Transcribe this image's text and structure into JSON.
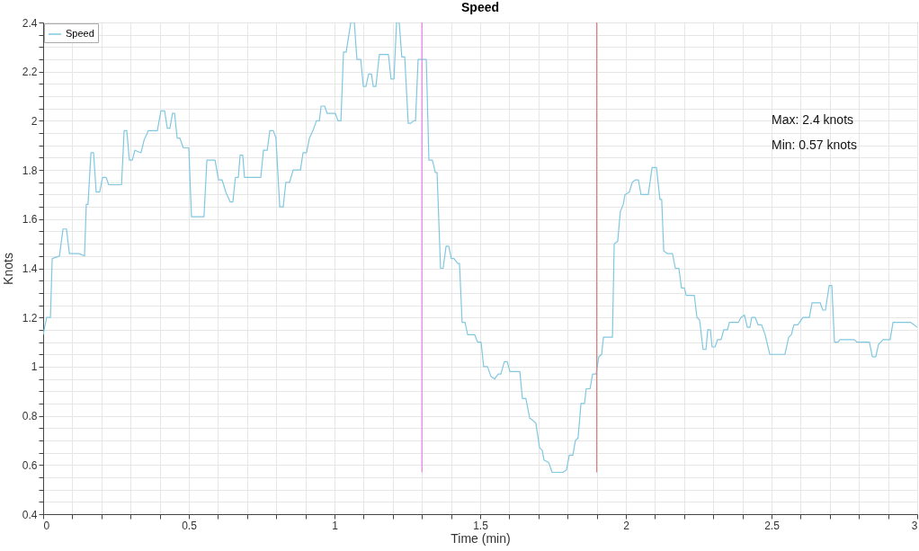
{
  "chart_data": {
    "type": "line",
    "title": "Speed",
    "xlabel": "Time (min)",
    "ylabel": "Knots",
    "xlim": [
      0,
      3
    ],
    "ylim": [
      0.4,
      2.4
    ],
    "xticks": [
      0,
      {
        "value": 0.1,
        "label": null
      },
      {
        "value": 0.2,
        "label": null
      },
      {
        "value": 0.3,
        "label": null
      },
      {
        "value": 0.4,
        "label": null
      },
      0.5,
      {
        "value": 0.6,
        "label": null
      },
      {
        "value": 0.7,
        "label": null
      },
      {
        "value": 0.8,
        "label": null
      },
      {
        "value": 0.9,
        "label": null
      },
      1,
      {
        "value": 1.1,
        "label": null
      },
      {
        "value": 1.2,
        "label": null
      },
      {
        "value": 1.3,
        "label": null
      },
      {
        "value": 1.4,
        "label": null
      },
      1.5,
      {
        "value": 1.6,
        "label": null
      },
      {
        "value": 1.7,
        "label": null
      },
      {
        "value": 1.8,
        "label": null
      },
      {
        "value": 1.9,
        "label": null
      },
      2,
      {
        "value": 2.1,
        "label": null
      },
      {
        "value": 2.2,
        "label": null
      },
      {
        "value": 2.3,
        "label": null
      },
      {
        "value": 2.4,
        "label": null
      },
      2.5,
      {
        "value": 2.6,
        "label": null
      },
      {
        "value": 2.7,
        "label": null
      },
      {
        "value": 2.8,
        "label": null
      },
      {
        "value": 2.9,
        "label": null
      },
      3
    ],
    "yticks": [
      0.4,
      {
        "value": 0.45,
        "label": null
      },
      {
        "value": 0.5,
        "label": null
      },
      {
        "value": 0.55,
        "label": null
      },
      0.6,
      {
        "value": 0.65,
        "label": null
      },
      {
        "value": 0.7,
        "label": null
      },
      {
        "value": 0.75,
        "label": null
      },
      0.8,
      {
        "value": 0.85,
        "label": null
      },
      {
        "value": 0.9,
        "label": null
      },
      {
        "value": 0.95,
        "label": null
      },
      1,
      {
        "value": 1.05,
        "label": null
      },
      {
        "value": 1.1,
        "label": null
      },
      {
        "value": 1.15,
        "label": null
      },
      1.2,
      {
        "value": 1.25,
        "label": null
      },
      {
        "value": 1.3,
        "label": null
      },
      {
        "value": 1.35,
        "label": null
      },
      1.4,
      {
        "value": 1.45,
        "label": null
      },
      {
        "value": 1.5,
        "label": null
      },
      {
        "value": 1.55,
        "label": null
      },
      1.6,
      {
        "value": 1.65,
        "label": null
      },
      {
        "value": 1.7,
        "label": null
      },
      {
        "value": 1.75,
        "label": null
      },
      1.8,
      {
        "value": 1.85,
        "label": null
      },
      {
        "value": 1.9,
        "label": null
      },
      {
        "value": 1.95,
        "label": null
      },
      2,
      {
        "value": 2.05,
        "label": null
      },
      {
        "value": 2.1,
        "label": null
      },
      {
        "value": 2.15,
        "label": null
      },
      2.2,
      {
        "value": 2.25,
        "label": null
      },
      {
        "value": 2.3,
        "label": null
      },
      {
        "value": 2.35,
        "label": null
      },
      2.4
    ],
    "grid": true,
    "legend": "top left",
    "annotations": [
      "Max: 2.4 knots",
      "Min: 0.57 knots"
    ],
    "series": [
      {
        "name": "Speed",
        "color": "#80c8e0",
        "x": [
          0,
          0.012,
          0.025,
          0.031,
          0.056,
          0.068,
          0.08,
          0.09,
          0.123,
          0.142,
          0.148,
          0.154,
          0.164,
          0.173,
          0.182,
          0.194,
          0.204,
          0.216,
          0.225,
          0.269,
          0.278,
          0.287,
          0.296,
          0.306,
          0.315,
          0.336,
          0.346,
          0.361,
          0.392,
          0.404,
          0.417,
          0.426,
          0.435,
          0.444,
          0.451,
          0.46,
          0.469,
          0.481,
          0.5,
          0.509,
          0.552,
          0.562,
          0.59,
          0.602,
          0.614,
          0.627,
          0.642,
          0.651,
          0.66,
          0.67,
          0.676,
          0.685,
          0.691,
          0.747,
          0.756,
          0.769,
          0.778,
          0.79,
          0.799,
          0.812,
          0.824,
          0.833,
          0.846,
          0.858,
          0.883,
          0.892,
          0.904,
          0.914,
          0.926,
          0.938,
          0.948,
          0.954,
          0.966,
          0.975,
          1.003,
          1.012,
          1.022,
          1.031,
          1.04,
          1.056,
          1.068,
          1.077,
          1.09,
          1.099,
          1.108,
          1.117,
          1.127,
          1.133,
          1.142,
          1.154,
          1.185,
          1.194,
          1.204,
          1.213,
          1.222,
          1.231,
          1.241,
          1.253,
          1.262,
          1.272,
          1.278,
          1.287,
          1.315,
          1.324,
          1.336,
          1.346,
          1.352,
          1.364,
          1.373,
          1.383,
          1.392,
          1.401,
          1.41,
          1.423,
          1.429,
          1.438,
          1.448,
          1.457,
          1.481,
          1.491,
          1.503,
          1.512,
          1.525,
          1.537,
          1.549,
          1.562,
          1.571,
          1.583,
          1.593,
          1.602,
          1.636,
          1.645,
          1.657,
          1.67,
          1.682,
          1.691,
          1.704,
          1.713,
          1.719,
          1.735,
          1.747,
          1.784,
          1.796,
          1.806,
          1.818,
          1.827,
          1.836,
          1.846,
          1.858,
          1.864,
          1.877,
          1.886,
          1.898,
          1.907,
          1.917,
          1.923,
          1.954,
          1.96,
          1.972,
          1.981,
          1.991,
          1.997,
          2.012,
          2.022,
          2.034,
          2.043,
          2.052,
          2.077,
          2.09,
          2.105,
          2.117,
          2.123,
          2.13,
          2.142,
          2.16,
          2.17,
          2.182,
          2.191,
          2.201,
          2.207,
          2.235,
          2.244,
          2.253,
          2.265,
          2.275,
          2.281,
          2.29,
          2.296,
          2.306,
          2.315,
          2.327,
          2.336,
          2.349,
          2.355,
          2.386,
          2.395,
          2.407,
          2.417,
          2.426,
          2.432,
          2.444,
          2.454,
          2.466,
          2.478,
          2.494,
          2.546,
          2.559,
          2.568,
          2.577,
          2.59,
          2.608,
          2.63,
          2.639,
          2.667,
          2.676,
          2.685,
          2.698,
          2.707,
          2.716,
          2.728,
          2.735,
          2.784,
          2.793,
          2.836,
          2.846,
          2.858,
          2.867,
          2.883,
          2.907,
          2.917,
          2.978,
          3
        ],
        "values": [
          1.13,
          1.2,
          1.2,
          1.44,
          1.45,
          1.56,
          1.56,
          1.46,
          1.46,
          1.45,
          1.66,
          1.66,
          1.87,
          1.87,
          1.71,
          1.71,
          1.77,
          1.77,
          1.74,
          1.74,
          1.96,
          1.96,
          1.84,
          1.84,
          1.88,
          1.87,
          1.92,
          1.96,
          1.96,
          2.04,
          2.04,
          1.97,
          1.97,
          2.03,
          2.03,
          1.93,
          1.93,
          1.89,
          1.89,
          1.61,
          1.61,
          1.84,
          1.84,
          1.76,
          1.76,
          1.71,
          1.67,
          1.67,
          1.77,
          1.77,
          1.86,
          1.86,
          1.77,
          1.77,
          1.88,
          1.88,
          1.96,
          1.96,
          1.93,
          1.65,
          1.65,
          1.75,
          1.75,
          1.8,
          1.8,
          1.87,
          1.87,
          1.93,
          1.96,
          2.0,
          2.0,
          2.06,
          2.06,
          2.03,
          2.03,
          2.0,
          2.0,
          2.28,
          2.28,
          2.4,
          2.4,
          2.25,
          2.25,
          2.14,
          2.14,
          2.19,
          2.19,
          2.14,
          2.14,
          2.27,
          2.27,
          2.17,
          2.17,
          2.4,
          2.4,
          2.26,
          2.26,
          1.99,
          1.99,
          2.0,
          2.0,
          2.25,
          2.25,
          1.84,
          1.84,
          1.79,
          1.79,
          1.4,
          1.4,
          1.49,
          1.49,
          1.44,
          1.44,
          1.42,
          1.42,
          1.18,
          1.18,
          1.13,
          1.13,
          1.1,
          1.1,
          1.0,
          1.0,
          0.96,
          0.95,
          0.97,
          0.97,
          1.02,
          1.02,
          0.98,
          0.98,
          0.87,
          0.87,
          0.79,
          0.78,
          0.77,
          0.67,
          0.66,
          0.62,
          0.61,
          0.57,
          0.57,
          0.58,
          0.64,
          0.64,
          0.7,
          0.71,
          0.85,
          0.85,
          0.91,
          0.91,
          0.97,
          0.97,
          1.04,
          1.05,
          1.12,
          1.12,
          1.5,
          1.51,
          1.63,
          1.66,
          1.7,
          1.71,
          1.75,
          1.76,
          1.76,
          1.7,
          1.7,
          1.81,
          1.81,
          1.68,
          1.68,
          1.47,
          1.46,
          1.46,
          1.4,
          1.4,
          1.32,
          1.32,
          1.29,
          1.29,
          1.2,
          1.19,
          1.07,
          1.07,
          1.15,
          1.15,
          1.08,
          1.08,
          1.11,
          1.11,
          1.15,
          1.15,
          1.18,
          1.18,
          1.2,
          1.21,
          1.16,
          1.16,
          1.2,
          1.2,
          1.17,
          1.17,
          1.13,
          1.05,
          1.05,
          1.12,
          1.13,
          1.17,
          1.17,
          1.2,
          1.2,
          1.26,
          1.26,
          1.23,
          1.23,
          1.33,
          1.33,
          1.1,
          1.1,
          1.11,
          1.11,
          1.1,
          1.1,
          1.04,
          1.04,
          1.09,
          1.11,
          1.11,
          1.18,
          1.18,
          1.16
        ]
      },
      {
        "color": "#e080e0",
        "x": [
          1.3,
          1.3
        ],
        "values": [
          0.57,
          2.4
        ]
      },
      {
        "color": "#e08080",
        "x": [
          1.9,
          1.9
        ],
        "values": [
          0.57,
          2.4
        ]
      }
    ]
  }
}
